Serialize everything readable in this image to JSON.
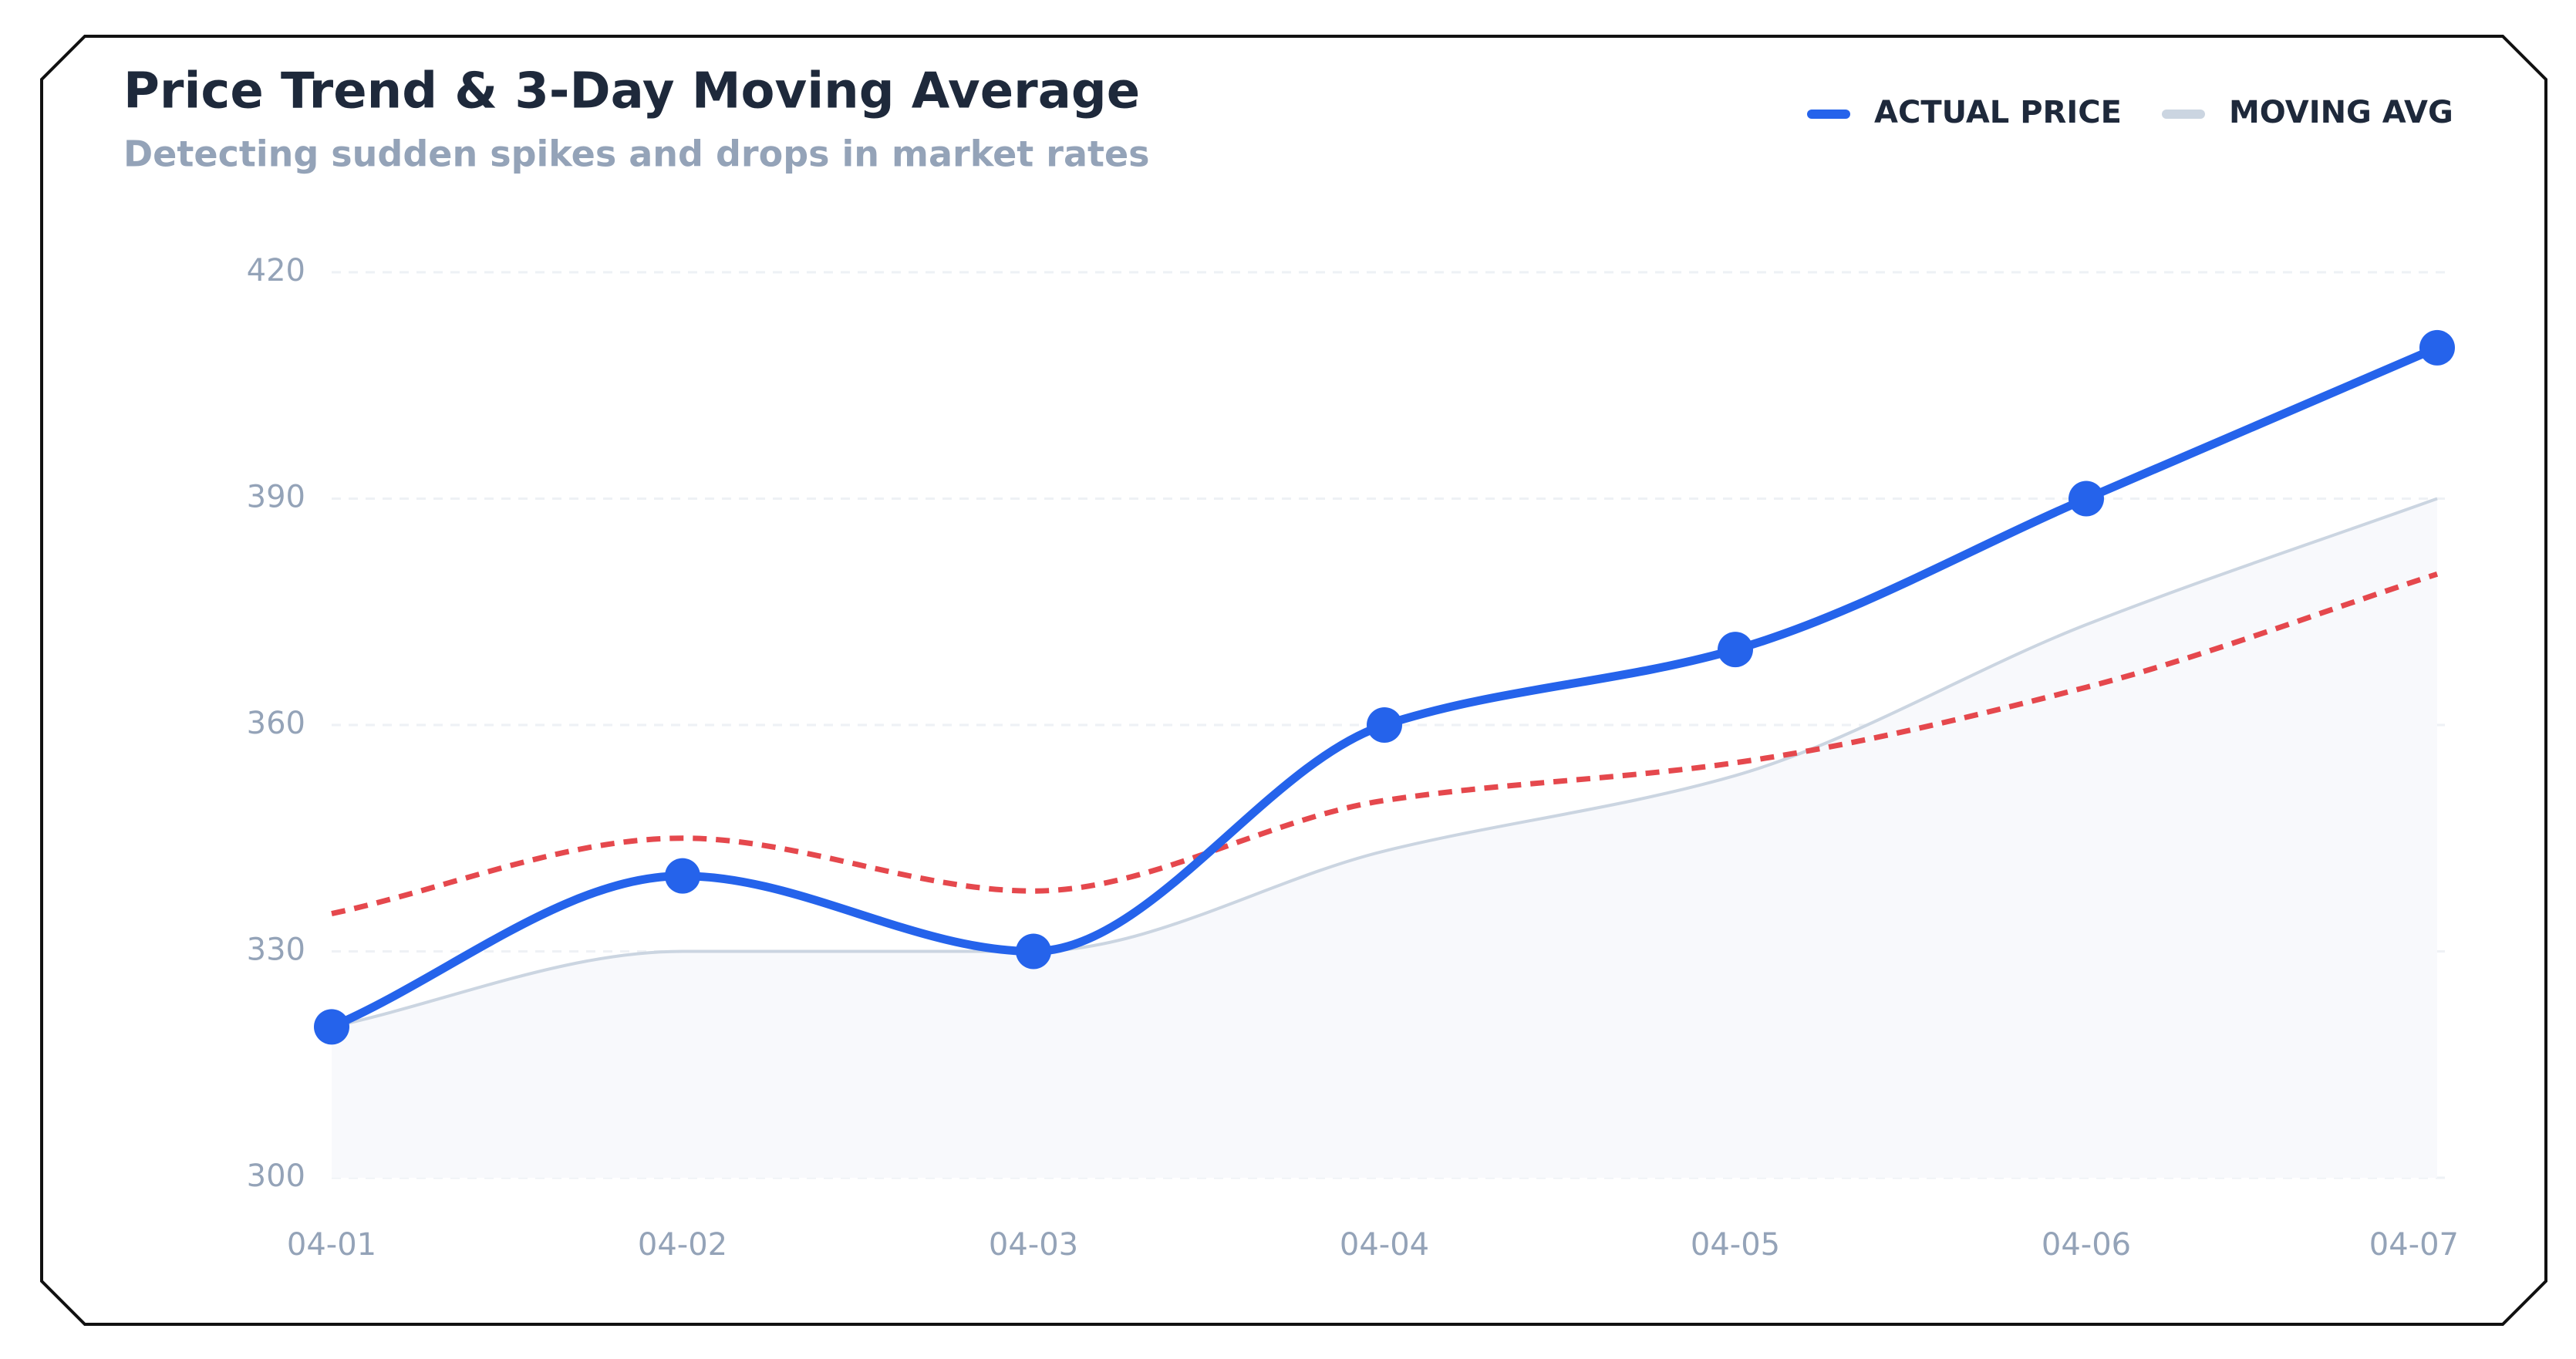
{
  "chart_data": {
    "type": "line",
    "title": "Price Trend & 3-Day Moving Average",
    "subtitle": "Detecting sudden spikes and drops in market rates",
    "categories": [
      "04-01",
      "04-02",
      "04-03",
      "04-04",
      "04-05",
      "04-06",
      "04-07"
    ],
    "series": [
      {
        "name": "ACTUAL PRICE",
        "color": "#2563eb",
        "values": [
          320,
          340,
          330,
          360,
          370,
          390,
          410
        ]
      },
      {
        "name": "MOVING AVG",
        "color": "#cbd5e1",
        "values": [
          320,
          330,
          330,
          343.3,
          353.3,
          373.3,
          390
        ]
      },
      {
        "color": "#e5484d",
        "values": [
          335,
          345,
          338,
          350,
          355,
          365,
          380
        ]
      }
    ],
    "ylim": [
      300,
      420
    ],
    "yticks": [
      300,
      330,
      360,
      390,
      420
    ],
    "grid": true
  }
}
